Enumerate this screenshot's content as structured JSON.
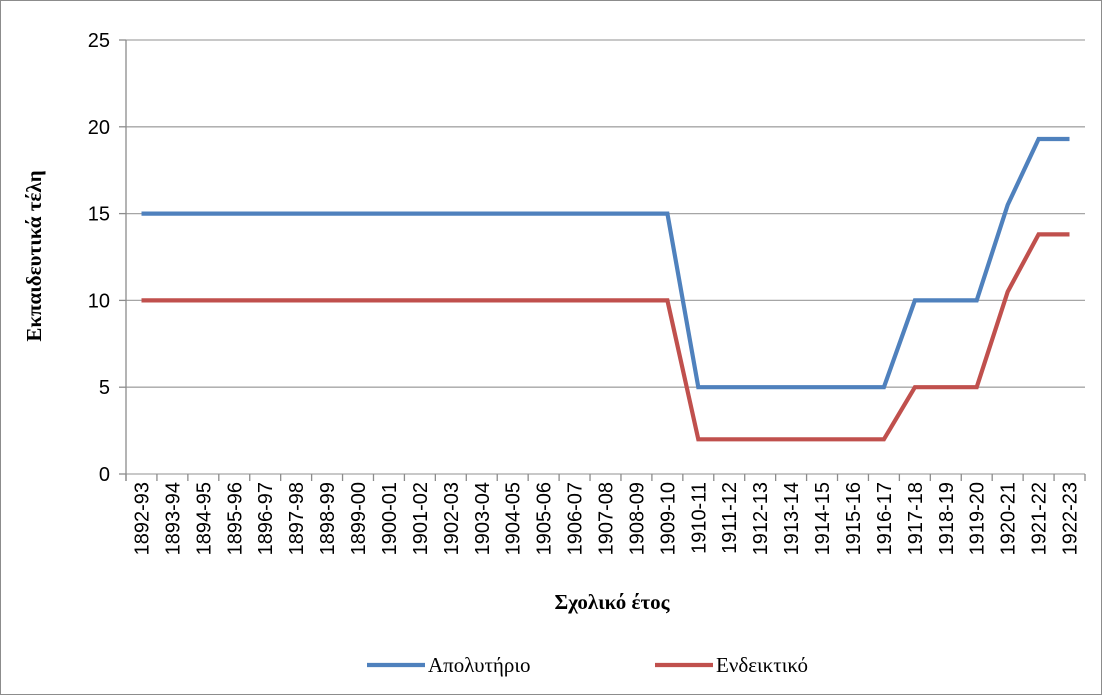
{
  "chart_data": {
    "type": "line",
    "categories": [
      "1892-93",
      "1893-94",
      "1894-95",
      "1895-96",
      "1896-97",
      "1897-98",
      "1898-99",
      "1899-00",
      "1900-01",
      "1901-02",
      "1902-03",
      "1903-04",
      "1904-05",
      "1905-06",
      "1906-07",
      "1907-08",
      "1908-09",
      "1909-10",
      "1910-11",
      "1911-12",
      "1912-13",
      "1913-14",
      "1914-15",
      "1915-16",
      "1916-17",
      "1917-18",
      "1918-19",
      "1919-20",
      "1920-21",
      "1921-22",
      "1922-23"
    ],
    "series": [
      {
        "name": "Απολυτήριο",
        "color": "#4f81bd",
        "values": [
          15,
          15,
          15,
          15,
          15,
          15,
          15,
          15,
          15,
          15,
          15,
          15,
          15,
          15,
          15,
          15,
          15,
          15,
          5,
          5,
          5,
          5,
          5,
          5,
          5,
          10,
          10,
          10,
          15.5,
          19.3,
          19.3
        ]
      },
      {
        "name": "Ενδεικτικό",
        "color": "#c0504d",
        "values": [
          10,
          10,
          10,
          10,
          10,
          10,
          10,
          10,
          10,
          10,
          10,
          10,
          10,
          10,
          10,
          10,
          10,
          10,
          2,
          2,
          2,
          2,
          2,
          2,
          2,
          5,
          5,
          5,
          10.5,
          13.8,
          13.8
        ]
      }
    ],
    "xlabel": "Σχολικό έτος",
    "ylabel": "Εκπαιδευτικά τέλη",
    "ylim": [
      0,
      25
    ],
    "yticks": [
      0,
      5,
      10,
      15,
      20,
      25
    ],
    "grid": true,
    "gridColor": "#a6a6a6",
    "legend": "bottom"
  }
}
